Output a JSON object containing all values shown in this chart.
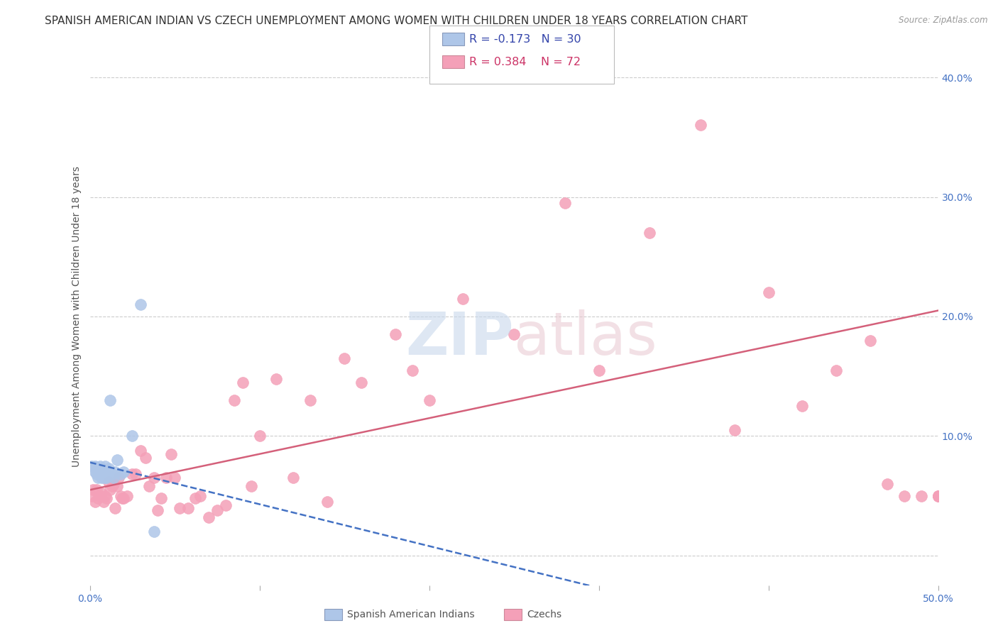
{
  "title": "SPANISH AMERICAN INDIAN VS CZECH UNEMPLOYMENT AMONG WOMEN WITH CHILDREN UNDER 18 YEARS CORRELATION CHART",
  "source": "Source: ZipAtlas.com",
  "ylabel": "Unemployment Among Women with Children Under 18 years",
  "xlim": [
    0.0,
    0.5
  ],
  "ylim": [
    -0.025,
    0.425
  ],
  "xticks": [
    0.0,
    0.1,
    0.2,
    0.3,
    0.4,
    0.5
  ],
  "xticklabels": [
    "0.0%",
    "",
    "",
    "",
    "",
    "50.0%"
  ],
  "yticks": [
    0.0,
    0.1,
    0.2,
    0.3,
    0.4
  ],
  "yticklabels": [
    "",
    "10.0%",
    "20.0%",
    "30.0%",
    "40.0%"
  ],
  "legend_labels": [
    "Spanish American Indians",
    "Czechs"
  ],
  "series1_R": -0.173,
  "series1_N": 30,
  "series2_R": 0.384,
  "series2_N": 72,
  "series1_color": "#aec6e8",
  "series2_color": "#f4a0b8",
  "series1_line_color": "#4472c4",
  "series2_line_color": "#d4607a",
  "background_color": "#ffffff",
  "grid_color": "#cccccc",
  "title_fontsize": 11,
  "axis_label_fontsize": 10,
  "tick_fontsize": 10,
  "series1_x": [
    0.001,
    0.003,
    0.003,
    0.004,
    0.005,
    0.005,
    0.006,
    0.006,
    0.007,
    0.007,
    0.008,
    0.008,
    0.009,
    0.009,
    0.009,
    0.01,
    0.01,
    0.01,
    0.011,
    0.011,
    0.012,
    0.013,
    0.014,
    0.015,
    0.016,
    0.018,
    0.02,
    0.025,
    0.03,
    0.038
  ],
  "series1_y": [
    0.075,
    0.07,
    0.075,
    0.068,
    0.065,
    0.072,
    0.068,
    0.075,
    0.065,
    0.072,
    0.065,
    0.07,
    0.065,
    0.068,
    0.075,
    0.065,
    0.068,
    0.072,
    0.068,
    0.073,
    0.13,
    0.068,
    0.065,
    0.07,
    0.08,
    0.068,
    0.07,
    0.1,
    0.21,
    0.02
  ],
  "series2_x": [
    0.001,
    0.002,
    0.003,
    0.004,
    0.005,
    0.006,
    0.007,
    0.008,
    0.009,
    0.01,
    0.011,
    0.012,
    0.013,
    0.014,
    0.015,
    0.016,
    0.017,
    0.018,
    0.019,
    0.02,
    0.022,
    0.025,
    0.027,
    0.03,
    0.033,
    0.035,
    0.038,
    0.04,
    0.042,
    0.045,
    0.048,
    0.05,
    0.053,
    0.058,
    0.062,
    0.065,
    0.07,
    0.075,
    0.08,
    0.085,
    0.09,
    0.095,
    0.1,
    0.11,
    0.12,
    0.13,
    0.14,
    0.15,
    0.16,
    0.18,
    0.19,
    0.2,
    0.22,
    0.25,
    0.28,
    0.3,
    0.33,
    0.36,
    0.38,
    0.4,
    0.42,
    0.44,
    0.46,
    0.47,
    0.48,
    0.49,
    0.5,
    0.5,
    0.5,
    0.5,
    0.5,
    0.5
  ],
  "series2_y": [
    0.05,
    0.055,
    0.045,
    0.055,
    0.048,
    0.05,
    0.052,
    0.045,
    0.05,
    0.048,
    0.062,
    0.055,
    0.058,
    0.06,
    0.04,
    0.058,
    0.065,
    0.05,
    0.048,
    0.048,
    0.05,
    0.068,
    0.068,
    0.088,
    0.082,
    0.058,
    0.065,
    0.038,
    0.048,
    0.065,
    0.085,
    0.065,
    0.04,
    0.04,
    0.048,
    0.05,
    0.032,
    0.038,
    0.042,
    0.13,
    0.145,
    0.058,
    0.1,
    0.148,
    0.065,
    0.13,
    0.045,
    0.165,
    0.145,
    0.185,
    0.155,
    0.13,
    0.215,
    0.185,
    0.295,
    0.155,
    0.27,
    0.36,
    0.105,
    0.22,
    0.125,
    0.155,
    0.18,
    0.06,
    0.05,
    0.05,
    0.05,
    0.05,
    0.05,
    0.05,
    0.05,
    0.05
  ]
}
